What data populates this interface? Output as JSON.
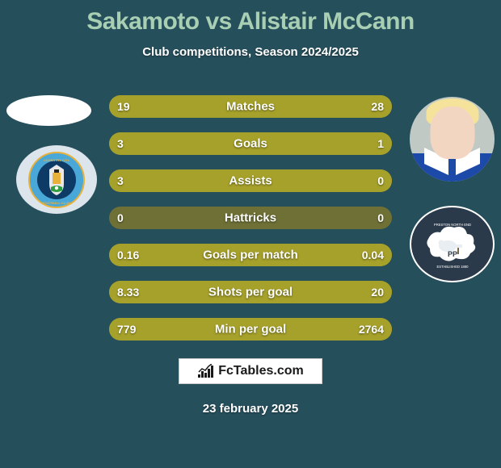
{
  "title": "Sakamoto vs Alistair McCann",
  "subtitle": "Club competitions, Season 2024/2025",
  "date": "23 february 2025",
  "logo_text": "FcTables.com",
  "colors": {
    "page_bg": "#264f5c",
    "title_color": "#a8ceb3",
    "bar_bg": "#6e7035",
    "bar_fill": "#a6a12a",
    "text": "#ffffff"
  },
  "stats": [
    {
      "label": "Matches",
      "left_val": "19",
      "right_val": "28",
      "left_pct": 40,
      "right_pct": 60
    },
    {
      "label": "Goals",
      "left_val": "3",
      "right_val": "1",
      "left_pct": 75,
      "right_pct": 25
    },
    {
      "label": "Assists",
      "left_val": "3",
      "right_val": "0",
      "left_pct": 100,
      "right_pct": 0
    },
    {
      "label": "Hattricks",
      "left_val": "0",
      "right_val": "0",
      "left_pct": 0,
      "right_pct": 0
    },
    {
      "label": "Goals per match",
      "left_val": "0.16",
      "right_val": "0.04",
      "left_pct": 80,
      "right_pct": 20
    },
    {
      "label": "Shots per goal",
      "left_val": "8.33",
      "right_val": "20",
      "left_pct": 29,
      "right_pct": 71
    },
    {
      "label": "Min per goal",
      "left_val": "779",
      "right_val": "2764",
      "left_pct": 22,
      "right_pct": 78
    }
  ],
  "player_left": {
    "name": "Sakamoto",
    "club": "Coventry City",
    "club_colors": {
      "primary": "#4aa8d8",
      "secondary": "#0e3a66",
      "accent": "#e8b13a"
    }
  },
  "player_right": {
    "name": "Alistair McCann",
    "club": "Preston North End",
    "club_colors": {
      "primary": "#2b3a4a",
      "text": "#ffffff"
    },
    "hair_color": "#f5e39b",
    "skin_color": "#f3d6c2",
    "shirt_color": "#1d4aa8"
  }
}
